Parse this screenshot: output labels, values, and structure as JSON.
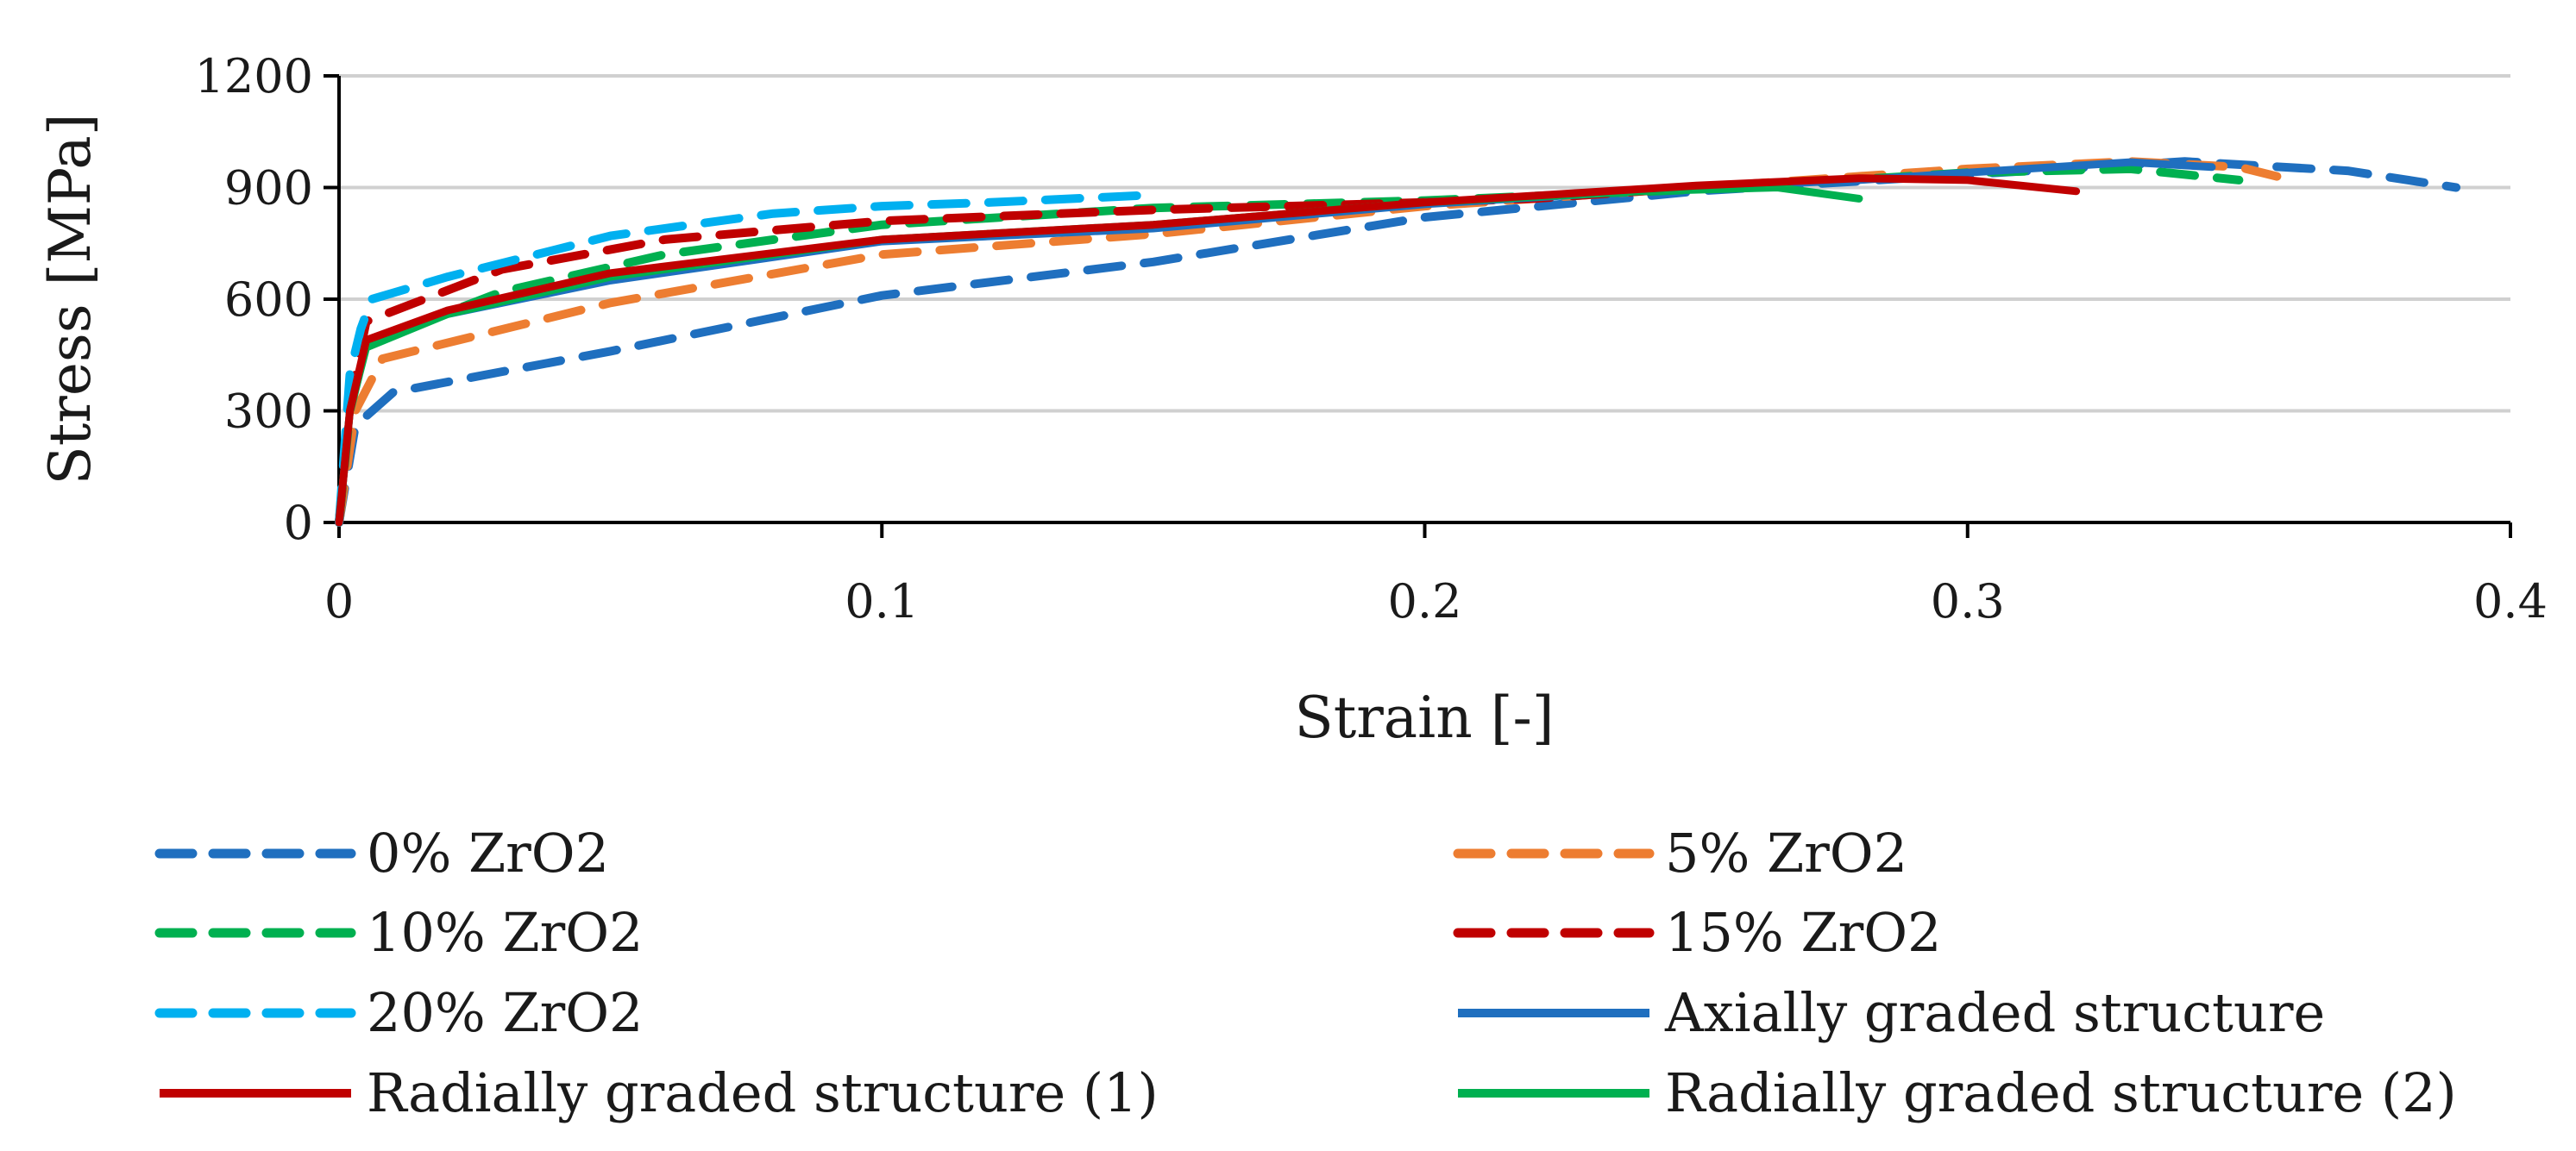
{
  "chart_data": {
    "type": "line",
    "title": "",
    "xlabel": "Strain [-]",
    "ylabel": "Stress [MPa]",
    "xlim": [
      0,
      0.4
    ],
    "ylim": [
      0,
      1200
    ],
    "x_ticks": [
      0,
      0.1,
      0.2,
      0.3,
      0.4
    ],
    "x_tick_labels": [
      "0",
      "0.1",
      "0.2",
      "0.3",
      "0.4"
    ],
    "y_ticks": [
      0,
      300,
      600,
      900,
      1200
    ],
    "y_tick_labels": [
      "0",
      "300",
      "600",
      "900",
      "1200"
    ],
    "grid": "horizontal",
    "legend_position": "bottom",
    "series": [
      {
        "name": "0% ZrO2",
        "color": "#1f6fbf",
        "style": "dashed",
        "x": [
          0,
          0.003,
          0.01,
          0.05,
          0.1,
          0.15,
          0.2,
          0.25,
          0.3,
          0.34,
          0.37,
          0.39
        ],
        "y": [
          0,
          260,
          350,
          460,
          610,
          700,
          820,
          890,
          935,
          970,
          945,
          900
        ]
      },
      {
        "name": "5%  ZrO2",
        "color": "#ed7d31",
        "style": "dashed",
        "x": [
          0,
          0.003,
          0.008,
          0.05,
          0.1,
          0.15,
          0.2,
          0.25,
          0.3,
          0.33,
          0.35,
          0.357
        ],
        "y": [
          0,
          300,
          440,
          590,
          720,
          775,
          850,
          900,
          950,
          970,
          955,
          930
        ]
      },
      {
        "name": "10%  ZrO2",
        "color": "#00b050",
        "style": "dashed",
        "x": [
          0,
          0.002,
          0.005,
          0.03,
          0.06,
          0.1,
          0.15,
          0.2,
          0.25,
          0.3,
          0.33,
          0.35
        ],
        "y": [
          0,
          300,
          480,
          620,
          720,
          800,
          845,
          865,
          895,
          940,
          950,
          920
        ]
      },
      {
        "name": "15%  ZrO2",
        "color": "#c00000",
        "style": "dashed",
        "x": [
          0,
          0.002,
          0.005,
          0.03,
          0.06,
          0.1,
          0.15,
          0.2,
          0.22,
          0.25
        ],
        "y": [
          0,
          330,
          540,
          680,
          760,
          810,
          840,
          860,
          870,
          900
        ]
      },
      {
        "name": "20%  ZrO2",
        "color": "#00b0f0",
        "style": "dashed",
        "x": [
          0,
          0.002,
          0.004,
          0.006,
          0.02,
          0.05,
          0.08,
          0.1,
          0.12,
          0.15
        ],
        "y": [
          0,
          400,
          520,
          600,
          660,
          770,
          830,
          850,
          860,
          880
        ]
      },
      {
        "name": "Axially graded structure",
        "color": "#1f6fbf",
        "style": "solid",
        "x": [
          0,
          0.002,
          0.005,
          0.02,
          0.05,
          0.1,
          0.15,
          0.2,
          0.25,
          0.28,
          0.3,
          0.33,
          0.345
        ],
        "y": [
          0,
          300,
          480,
          560,
          650,
          755,
          790,
          855,
          900,
          920,
          940,
          968,
          955
        ]
      },
      {
        "name": "Radially graded structure (1)",
        "color": "#c00000",
        "style": "solid",
        "x": [
          0,
          0.002,
          0.005,
          0.02,
          0.05,
          0.1,
          0.15,
          0.2,
          0.25,
          0.28,
          0.3,
          0.32
        ],
        "y": [
          0,
          300,
          490,
          570,
          670,
          760,
          800,
          860,
          905,
          925,
          920,
          890
        ]
      },
      {
        "name": "Radially graded structure (2)",
        "color": "#00b050",
        "style": "solid",
        "x": [
          0,
          0.002,
          0.005,
          0.02,
          0.05,
          0.1,
          0.15,
          0.2,
          0.24,
          0.265,
          0.28
        ],
        "y": [
          0,
          300,
          470,
          560,
          660,
          760,
          800,
          860,
          890,
          900,
          870
        ]
      }
    ]
  }
}
